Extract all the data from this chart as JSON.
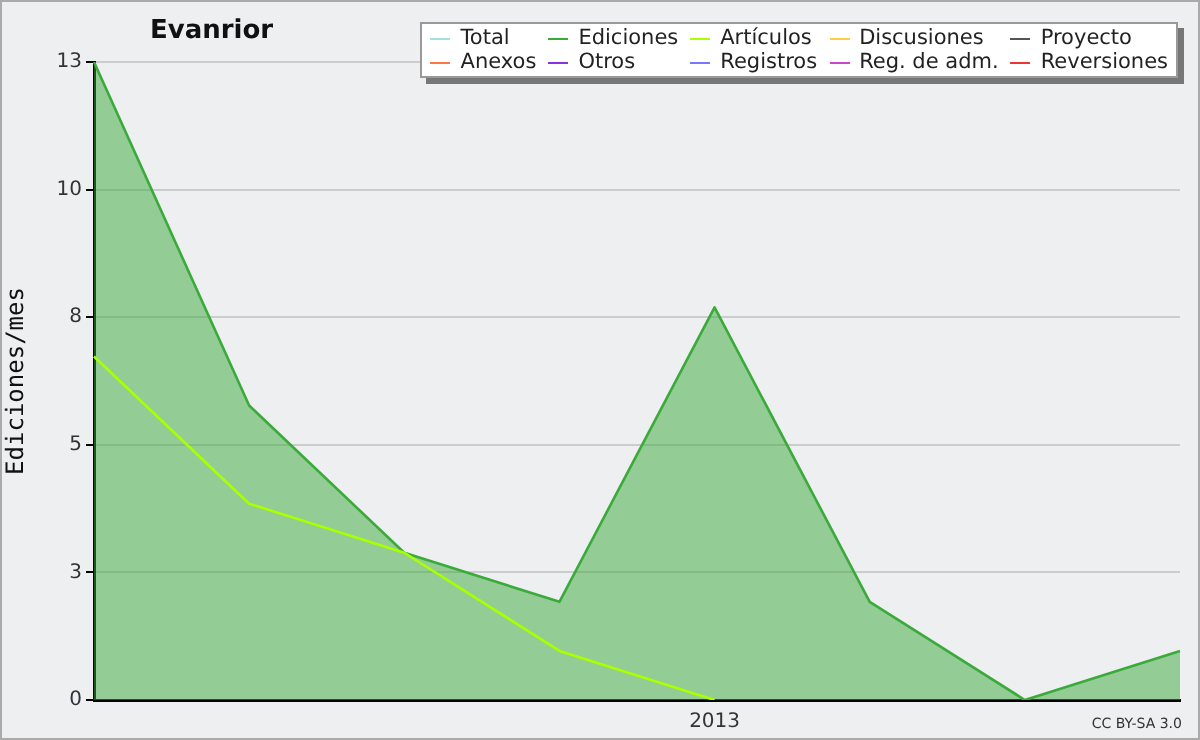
{
  "chart_data": {
    "type": "line",
    "title": "Evanrior",
    "ylabel": "Ediciones/mes",
    "categories": [
      null,
      null,
      null,
      null,
      "2013",
      null,
      null,
      null
    ],
    "series": [
      {
        "name": "Total",
        "color": "#a0e0e0",
        "values": [
          null,
          null,
          null,
          null,
          null,
          null,
          null,
          null
        ]
      },
      {
        "name": "Ediciones",
        "type": "area",
        "color": "#3aaa3a",
        "values": [
          13,
          6,
          3,
          2,
          8,
          2,
          0,
          1
        ]
      },
      {
        "name": "Artículos",
        "color": "#aaff00",
        "values": [
          7,
          4,
          3,
          1,
          0,
          null,
          null,
          null
        ]
      },
      {
        "name": "Discusiones",
        "color": "#ffcc44",
        "values": [
          null,
          null,
          null,
          null,
          null,
          null,
          null,
          null
        ]
      },
      {
        "name": "Proyecto",
        "color": "#555555",
        "values": [
          null,
          null,
          null,
          null,
          null,
          null,
          null,
          null
        ]
      },
      {
        "name": "Anexos",
        "color": "#ff7744",
        "values": [
          null,
          null,
          null,
          null,
          null,
          null,
          null,
          null
        ]
      },
      {
        "name": "Otros",
        "color": "#8833dd",
        "values": [
          null,
          null,
          null,
          null,
          null,
          null,
          null,
          null
        ]
      },
      {
        "name": "Registros",
        "color": "#7777ff",
        "values": [
          null,
          null,
          null,
          null,
          null,
          null,
          null,
          null
        ]
      },
      {
        "name": "Reg. de adm.",
        "color": "#cc44cc",
        "values": [
          null,
          null,
          null,
          null,
          null,
          null,
          null,
          null
        ]
      },
      {
        "name": "Reversiones",
        "color": "#ee3333",
        "values": [
          null,
          null,
          null,
          null,
          null,
          null,
          null,
          null
        ]
      }
    ],
    "ylim": [
      0,
      13
    ],
    "yticks": [
      0,
      {
        "value": 2.6,
        "label": "3"
      },
      {
        "value": 5.2,
        "label": "5"
      },
      {
        "value": 7.8,
        "label": "8"
      },
      {
        "value": 10.4,
        "label": "10"
      },
      13
    ],
    "grid": "y",
    "legend": "top right",
    "marker": "none",
    "line_style": "solid",
    "annotations": [
      "CC BY-SA 3.0"
    ]
  }
}
